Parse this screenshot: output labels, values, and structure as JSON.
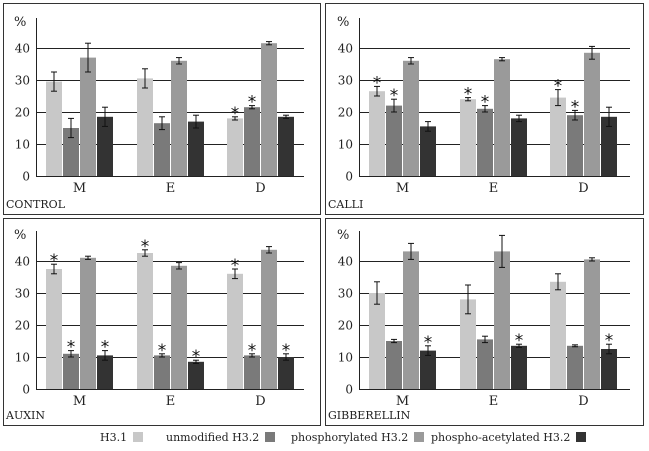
{
  "legend": [
    {
      "label": "H3.1",
      "color": "#c8c8c8"
    },
    {
      "label": "unmodified H3.2",
      "color": "#7a7a7a"
    },
    {
      "label": "phosphorylated H3.2",
      "color": "#9a9a9a"
    },
    {
      "label": "phospho-acetylated H3.2",
      "color": "#333333"
    }
  ],
  "chart_data": [
    {
      "type": "bar",
      "panel_label": "CONTROL",
      "ylabel": "%",
      "ylim": [
        0,
        50
      ],
      "yticks": [
        0,
        10,
        20,
        30,
        40
      ],
      "categories": [
        "M",
        "E",
        "D"
      ],
      "grid": true,
      "series": [
        {
          "name": "H3.1",
          "values": [
            29.5,
            30.5,
            18
          ],
          "errors": [
            3,
            3,
            0.5
          ],
          "significant": [
            false,
            false,
            true
          ]
        },
        {
          "name": "unmodified H3.2",
          "values": [
            15,
            16.5,
            21.5
          ],
          "errors": [
            3,
            2,
            0.5
          ],
          "significant": [
            false,
            false,
            true
          ]
        },
        {
          "name": "phosphorylated H3.2",
          "values": [
            37,
            36,
            41.5
          ],
          "errors": [
            4.5,
            1,
            0.5
          ],
          "significant": [
            false,
            false,
            false
          ]
        },
        {
          "name": "phospho-acetylated H3.2",
          "values": [
            18.5,
            17,
            18.5
          ],
          "errors": [
            3,
            2,
            0.5
          ],
          "significant": [
            false,
            false,
            false
          ]
        }
      ]
    },
    {
      "type": "bar",
      "panel_label": "CALLI",
      "ylabel": "%",
      "ylim": [
        0,
        50
      ],
      "yticks": [
        0,
        10,
        20,
        30,
        40
      ],
      "categories": [
        "M",
        "E",
        "D"
      ],
      "grid": true,
      "series": [
        {
          "name": "H3.1",
          "values": [
            26.5,
            24,
            24.5
          ],
          "errors": [
            1.5,
            0.5,
            2.5
          ],
          "significant": [
            true,
            true,
            true
          ]
        },
        {
          "name": "unmodified H3.2",
          "values": [
            22,
            21,
            19
          ],
          "errors": [
            2,
            1,
            1.5
          ],
          "significant": [
            true,
            true,
            true
          ]
        },
        {
          "name": "phosphorylated H3.2",
          "values": [
            36,
            36.5,
            38.5
          ],
          "errors": [
            1,
            0.5,
            2
          ],
          "significant": [
            false,
            false,
            false
          ]
        },
        {
          "name": "phospho-acetylated H3.2",
          "values": [
            15.5,
            18,
            18.5
          ],
          "errors": [
            1.5,
            1,
            3
          ],
          "significant": [
            false,
            false,
            false
          ]
        }
      ]
    },
    {
      "type": "bar",
      "panel_label": "AUXIN",
      "ylabel": "%",
      "ylim": [
        0,
        50
      ],
      "yticks": [
        0,
        10,
        20,
        30,
        40
      ],
      "categories": [
        "M",
        "E",
        "D"
      ],
      "grid": true,
      "series": [
        {
          "name": "H3.1",
          "values": [
            37.5,
            42.5,
            36
          ],
          "errors": [
            1.5,
            1,
            1.5
          ],
          "significant": [
            true,
            true,
            true
          ]
        },
        {
          "name": "unmodified H3.2",
          "values": [
            11,
            10.5,
            10.5
          ],
          "errors": [
            1,
            0.5,
            0.5
          ],
          "significant": [
            true,
            true,
            true
          ]
        },
        {
          "name": "phosphorylated H3.2",
          "values": [
            41,
            38.5,
            43.5
          ],
          "errors": [
            0.5,
            1,
            1
          ],
          "significant": [
            false,
            false,
            false
          ]
        },
        {
          "name": "phospho-acetylated H3.2",
          "values": [
            10.5,
            8.5,
            10
          ],
          "errors": [
            1.5,
            0.5,
            1
          ],
          "significant": [
            true,
            true,
            true
          ]
        }
      ]
    },
    {
      "type": "bar",
      "panel_label": "GIBBERELLIN",
      "ylabel": "%",
      "ylim": [
        0,
        50
      ],
      "yticks": [
        0,
        10,
        20,
        30,
        40
      ],
      "categories": [
        "M",
        "E",
        "D"
      ],
      "grid": true,
      "series": [
        {
          "name": "H3.1",
          "values": [
            30,
            28,
            33.5
          ],
          "errors": [
            3.5,
            4.5,
            2.5
          ],
          "significant": [
            false,
            false,
            false
          ]
        },
        {
          "name": "unmodified H3.2",
          "values": [
            15,
            15.5,
            13.5
          ],
          "errors": [
            0.5,
            1,
            0.3
          ],
          "significant": [
            false,
            false,
            false
          ]
        },
        {
          "name": "phosphorylated H3.2",
          "values": [
            43,
            43,
            40.5
          ],
          "errors": [
            2.5,
            5,
            0.5
          ],
          "significant": [
            false,
            false,
            false
          ]
        },
        {
          "name": "phospho-acetylated H3.2",
          "values": [
            12,
            13.5,
            12.5
          ],
          "errors": [
            1.5,
            0.5,
            1.5
          ],
          "significant": [
            true,
            true,
            true
          ]
        }
      ]
    }
  ]
}
